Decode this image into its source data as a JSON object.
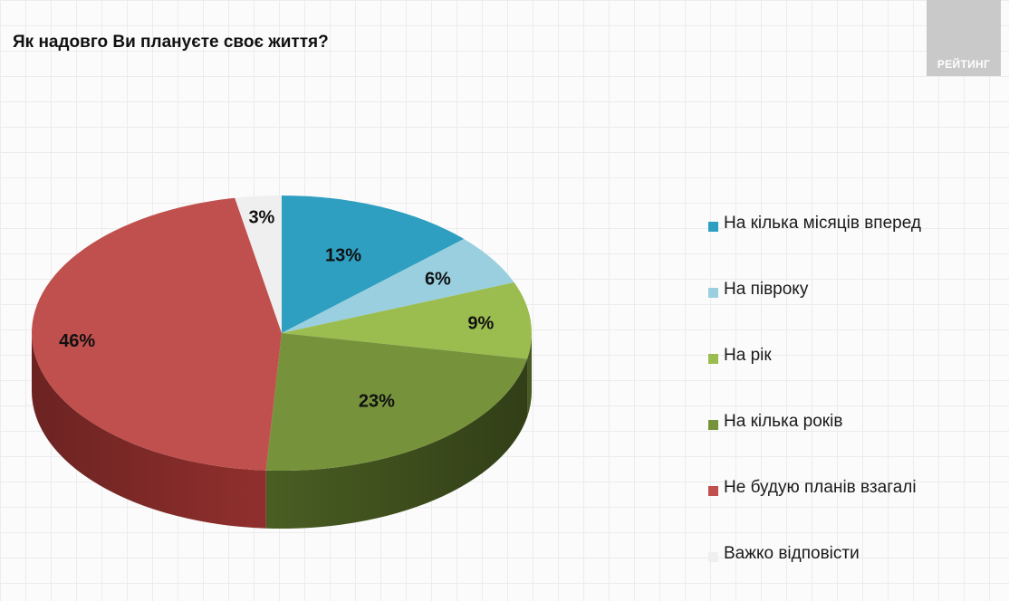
{
  "title": "Як надовго Ви плануєте своє життя?",
  "logo_text": "РЕЙТИНГ",
  "chart_data": {
    "type": "pie",
    "style": "3d",
    "legend_position": "right",
    "categories": [
      "На кілька місяців вперед",
      "На півроку",
      "На рік",
      "На кілька років",
      "Не будую планів взагалі",
      "Важко відповісти"
    ],
    "values": [
      13,
      6,
      9,
      23,
      46,
      3
    ],
    "value_labels": [
      "13%",
      "6%",
      "9%",
      "23%",
      "46%",
      "3%"
    ],
    "colors": [
      "#2e9fc0",
      "#99cfdf",
      "#9bbd4f",
      "#76933c",
      "#c0504d",
      "#efefef"
    ],
    "side_colors": [
      "#237a93",
      "#77a3b0",
      "#6f8a36",
      "#4b5f23",
      "#8f2f2d",
      "#c8c8c8"
    ]
  }
}
